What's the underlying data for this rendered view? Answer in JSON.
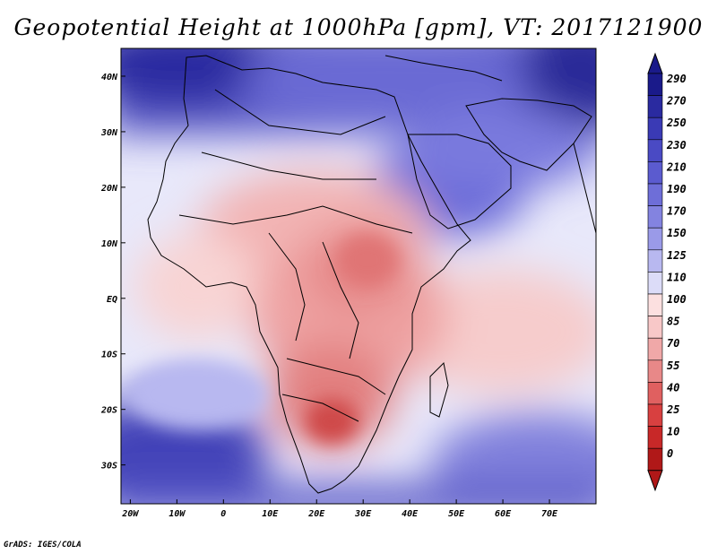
{
  "title": "Geopotential Height at 1000hPa [gpm], VT: 2017121900",
  "credit": "GrADS: IGES/COLA",
  "map": {
    "lon_labels": [
      "20W",
      "10W",
      "0",
      "10E",
      "20E",
      "30E",
      "40E",
      "50E",
      "60E",
      "70E"
    ],
    "lon_values": [
      -20,
      -10,
      0,
      10,
      20,
      30,
      40,
      50,
      60,
      70
    ],
    "lat_labels": [
      "40N",
      "30N",
      "20N",
      "10N",
      "EQ",
      "10S",
      "20S",
      "30S"
    ],
    "lat_values": [
      40,
      30,
      20,
      10,
      0,
      -10,
      -20,
      -30
    ],
    "lon_range": [
      -22,
      80
    ],
    "lat_range": [
      -37,
      45
    ]
  },
  "colorbar": {
    "levels": [
      "290",
      "270",
      "250",
      "230",
      "210",
      "190",
      "170",
      "150",
      "125",
      "110",
      "100",
      "85",
      "70",
      "55",
      "40",
      "25",
      "10",
      "0"
    ],
    "colors": [
      "#1a1a8a",
      "#2a2aa0",
      "#3a3ab5",
      "#4a4ac4",
      "#5b5bcf",
      "#6e6ed8",
      "#8383e0",
      "#9a9ae8",
      "#b8b8f0",
      "#dcdcf8",
      "#fce0e0",
      "#f8c8c8",
      "#f0a8a8",
      "#e88888",
      "#e06060",
      "#d84040",
      "#c82828",
      "#b01818"
    ],
    "top_color": "#1a1a8a",
    "bottom_color": "#b01818"
  }
}
